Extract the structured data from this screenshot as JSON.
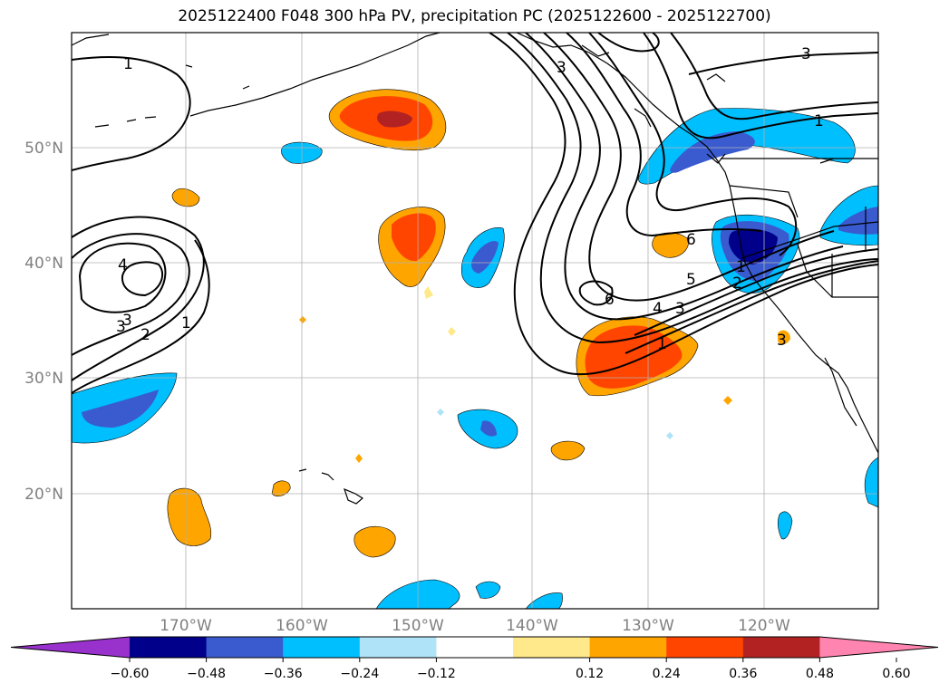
{
  "title": "2025122400 F048 300 hPa PV, precipitation PC (2025122600 - 2025122700)",
  "latitude_labels": [
    "50°N",
    "40°N",
    "30°N",
    "20°N"
  ],
  "longitude_labels": [
    "170°W",
    "160°W",
    "150°W",
    "140°W",
    "130°W",
    "120°W"
  ],
  "pv_contour_labels": [
    "1",
    "3",
    "4",
    "3",
    "2",
    "1",
    "1",
    "3",
    "3",
    "1",
    "6",
    "5",
    "4",
    "3",
    "2",
    "1",
    "6",
    "3"
  ],
  "colorbar": {
    "tick_labels": [
      "−0.60",
      "−0.48",
      "−0.36",
      "−0.24",
      "−0.12",
      "0.12",
      "0.24",
      "0.36",
      "0.48",
      "0.60"
    ],
    "colors": [
      "#9932cc",
      "#00008b",
      "#3a5bd0",
      "#00bfff",
      "#aee3f8",
      "#ffffff",
      "#ffe98a",
      "#ffa500",
      "#ff4500",
      "#b22222",
      "#ff85b0"
    ]
  },
  "colors": {
    "pv_contour": "#000000",
    "coastline": "#000000",
    "grid": "#b0b0b0"
  }
}
